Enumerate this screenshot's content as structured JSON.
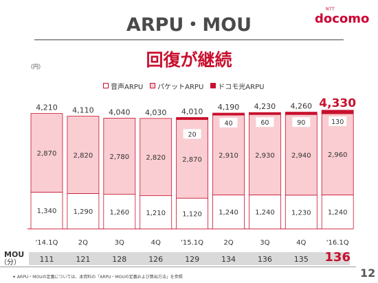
{
  "header": {
    "title": "ARPU・MOU",
    "logo_small": "NTT",
    "logo": "docomo"
  },
  "subtitle": "回復が継続",
  "unit": "（円）",
  "legend": [
    {
      "label": "音声ARPU",
      "color": "#ffffff"
    },
    {
      "label": "パケットARPU",
      "color": "#f9cdd1"
    },
    {
      "label": "ドコモ光ARPU",
      "color": "#c8102e"
    }
  ],
  "chart_data": {
    "type": "bar",
    "stacked": true,
    "categories": [
      "'14.1Q",
      "2Q",
      "3Q",
      "4Q",
      "'15.1Q",
      "2Q",
      "3Q",
      "4Q",
      "'16.1Q"
    ],
    "series": [
      {
        "name": "音声ARPU",
        "values": [
          1340,
          1290,
          1260,
          1210,
          1120,
          1240,
          1240,
          1230,
          1240
        ],
        "labels": [
          "1,340",
          "1,290",
          "1,260",
          "1,210",
          "1,120",
          "1,240",
          "1,240",
          "1,230",
          "1,240"
        ]
      },
      {
        "name": "パケットARPU",
        "values": [
          2870,
          2820,
          2780,
          2820,
          2870,
          2910,
          2930,
          2940,
          2960
        ],
        "labels": [
          "2,870",
          "2,820",
          "2,780",
          "2,820",
          "2,870",
          "2,910",
          "2,930",
          "2,940",
          "2,960"
        ]
      },
      {
        "name": "ドコモ光ARPU",
        "values": [
          0,
          0,
          0,
          0,
          20,
          40,
          60,
          90,
          130
        ],
        "labels": [
          "",
          "",
          "",
          "",
          "20",
          "40",
          "60",
          "90",
          "130"
        ]
      }
    ],
    "totals": [
      "4,210",
      "4,110",
      "4,040",
      "4,030",
      "4,010",
      "4,190",
      "4,230",
      "4,260",
      "4,330"
    ],
    "highlight_index": 8,
    "ylim": [
      0,
      4500
    ]
  },
  "mou": {
    "label_line1": "MOU",
    "label_line2": "（分）",
    "values": [
      "111",
      "121",
      "128",
      "126",
      "129",
      "134",
      "136",
      "135",
      "136"
    ],
    "highlight_index": 8
  },
  "footnote": "✦ ARPU・MOUの定義については、本資料の「ARPU・MOUの定義および算出方法」を参照",
  "page_number": "12",
  "colors": {
    "accent": "#c8102e",
    "packet_fill": "#f9cdd1",
    "voice_fill": "#ffffff"
  }
}
